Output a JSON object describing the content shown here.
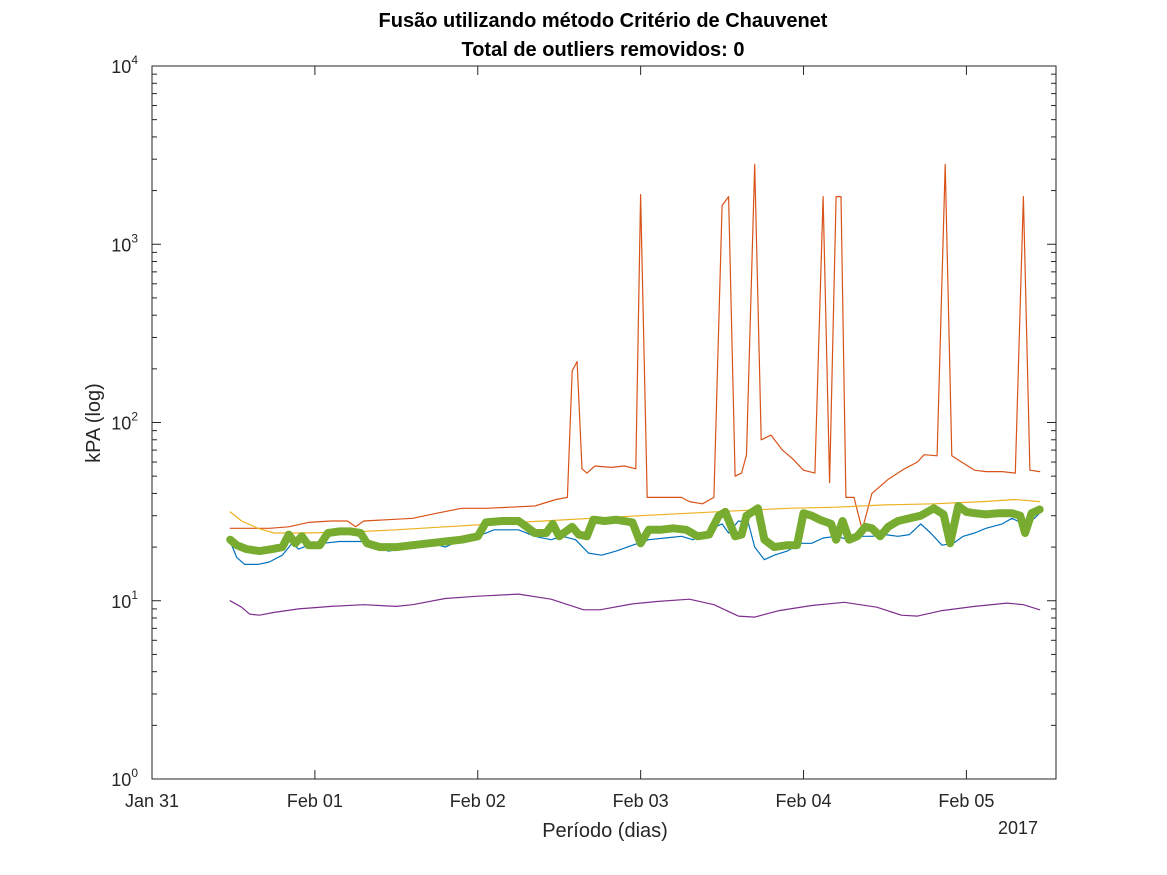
{
  "chart_data": {
    "type": "line",
    "title": [
      "Fusão utilizando método Critério de Chauvenet",
      "Total de outliers removidos: 0"
    ],
    "xlabel": "Período (dias)",
    "ylabel": "kPA (log)",
    "x_tick_labels": [
      "Jan 31",
      "Feb 01",
      "Feb 02",
      "Feb 03",
      "Feb 04",
      "Feb 05"
    ],
    "x_tick_days": [
      0,
      1,
      2,
      3,
      4,
      5
    ],
    "x_secondary_label": "2017",
    "xlim_days": [
      0,
      5.55
    ],
    "y_scale": "log",
    "ylim": [
      1,
      10000
    ],
    "y_ticks": [
      {
        "base": "10",
        "exp": "0"
      },
      {
        "base": "10",
        "exp": "1"
      },
      {
        "base": "10",
        "exp": "2"
      },
      {
        "base": "10",
        "exp": "3"
      },
      {
        "base": "10",
        "exp": "4"
      }
    ],
    "grid": false,
    "legend": "none",
    "series": [
      {
        "color": "#D95319",
        "width": 1.2,
        "points": [
          [
            0.48,
            25.5
          ],
          [
            0.6,
            25.5
          ],
          [
            0.72,
            25.5
          ],
          [
            0.84,
            26
          ],
          [
            0.96,
            27.5
          ],
          [
            1.1,
            28
          ],
          [
            1.2,
            28
          ],
          [
            1.25,
            26
          ],
          [
            1.3,
            28
          ],
          [
            1.45,
            28.5
          ],
          [
            1.6,
            29
          ],
          [
            1.75,
            31
          ],
          [
            1.9,
            33
          ],
          [
            2.05,
            33
          ],
          [
            2.2,
            33.5
          ],
          [
            2.35,
            34
          ],
          [
            2.48,
            37
          ],
          [
            2.55,
            38
          ],
          [
            2.58,
            195
          ],
          [
            2.61,
            220
          ],
          [
            2.64,
            55
          ],
          [
            2.67,
            52
          ],
          [
            2.72,
            57
          ],
          [
            2.82,
            56
          ],
          [
            2.9,
            57
          ],
          [
            2.97,
            55
          ],
          [
            3.0,
            1900
          ],
          [
            3.04,
            38
          ],
          [
            3.15,
            38
          ],
          [
            3.25,
            38
          ],
          [
            3.3,
            36
          ],
          [
            3.38,
            35
          ],
          [
            3.45,
            38
          ],
          [
            3.5,
            1650
          ],
          [
            3.54,
            1850
          ],
          [
            3.58,
            50
          ],
          [
            3.62,
            52
          ],
          [
            3.65,
            66
          ],
          [
            3.7,
            2800
          ],
          [
            3.74,
            80
          ],
          [
            3.8,
            85
          ],
          [
            3.87,
            70
          ],
          [
            3.93,
            63
          ],
          [
            4.0,
            54
          ],
          [
            4.07,
            52
          ],
          [
            4.12,
            1850
          ],
          [
            4.16,
            46
          ],
          [
            4.2,
            1850
          ],
          [
            4.23,
            1850
          ],
          [
            4.26,
            38
          ],
          [
            4.31,
            38
          ],
          [
            4.36,
            25
          ],
          [
            4.42,
            40
          ],
          [
            4.52,
            48
          ],
          [
            4.62,
            55
          ],
          [
            4.7,
            60
          ],
          [
            4.74,
            66
          ],
          [
            4.82,
            65
          ],
          [
            4.87,
            2800
          ],
          [
            4.91,
            65
          ],
          [
            4.97,
            60
          ],
          [
            5.05,
            54
          ],
          [
            5.12,
            53
          ],
          [
            5.22,
            53
          ],
          [
            5.3,
            52
          ],
          [
            5.35,
            1850
          ],
          [
            5.39,
            54
          ],
          [
            5.45,
            53
          ]
        ]
      },
      {
        "color": "#EDB120",
        "width": 1.2,
        "points": [
          [
            0.48,
            31.5
          ],
          [
            0.55,
            28
          ],
          [
            0.65,
            25.5
          ],
          [
            0.75,
            24
          ],
          [
            0.9,
            24
          ],
          [
            1.2,
            24.2
          ],
          [
            1.5,
            25
          ],
          [
            1.8,
            26
          ],
          [
            2.1,
            27
          ],
          [
            2.4,
            28
          ],
          [
            2.7,
            29
          ],
          [
            3.0,
            30
          ],
          [
            3.3,
            31
          ],
          [
            3.6,
            32
          ],
          [
            3.9,
            33
          ],
          [
            4.2,
            33.5
          ],
          [
            4.5,
            34.5
          ],
          [
            4.8,
            35
          ],
          [
            5.1,
            36
          ],
          [
            5.3,
            37
          ],
          [
            5.45,
            36
          ]
        ]
      },
      {
        "color": "#0072BD",
        "width": 1.2,
        "points": [
          [
            0.48,
            21.5
          ],
          [
            0.52,
            17.5
          ],
          [
            0.57,
            16
          ],
          [
            0.65,
            16
          ],
          [
            0.72,
            16.5
          ],
          [
            0.8,
            18
          ],
          [
            0.86,
            21
          ],
          [
            0.9,
            19.5
          ],
          [
            0.96,
            20.5
          ],
          [
            1.05,
            21
          ],
          [
            1.15,
            21.5
          ],
          [
            1.3,
            21.5
          ],
          [
            1.38,
            20.5
          ],
          [
            1.45,
            19
          ],
          [
            1.52,
            19.5
          ],
          [
            1.62,
            20.5
          ],
          [
            1.72,
            21
          ],
          [
            1.8,
            20
          ],
          [
            1.9,
            22
          ],
          [
            2.0,
            23
          ],
          [
            2.1,
            25
          ],
          [
            2.25,
            25
          ],
          [
            2.35,
            23
          ],
          [
            2.45,
            22
          ],
          [
            2.52,
            23
          ],
          [
            2.6,
            22
          ],
          [
            2.68,
            18.5
          ],
          [
            2.76,
            18
          ],
          [
            2.85,
            19
          ],
          [
            2.95,
            20.5
          ],
          [
            3.05,
            22
          ],
          [
            3.15,
            22.5
          ],
          [
            3.25,
            23
          ],
          [
            3.32,
            22
          ],
          [
            3.4,
            23.5
          ],
          [
            3.46,
            26
          ],
          [
            3.5,
            27
          ],
          [
            3.54,
            24
          ],
          [
            3.6,
            28
          ],
          [
            3.66,
            27.5
          ],
          [
            3.7,
            20
          ],
          [
            3.76,
            17
          ],
          [
            3.82,
            18
          ],
          [
            3.9,
            19
          ],
          [
            3.98,
            21
          ],
          [
            4.05,
            21
          ],
          [
            4.12,
            22.5
          ],
          [
            4.2,
            23
          ],
          [
            4.28,
            22
          ],
          [
            4.35,
            23
          ],
          [
            4.42,
            23
          ],
          [
            4.5,
            23.5
          ],
          [
            4.58,
            23
          ],
          [
            4.65,
            23.5
          ],
          [
            4.72,
            27
          ],
          [
            4.78,
            24
          ],
          [
            4.85,
            20.5
          ],
          [
            4.92,
            21
          ],
          [
            4.98,
            23
          ],
          [
            5.05,
            24
          ],
          [
            5.12,
            25.5
          ],
          [
            5.22,
            27
          ],
          [
            5.28,
            29
          ],
          [
            5.35,
            27
          ],
          [
            5.4,
            28
          ],
          [
            5.45,
            31
          ]
        ]
      },
      {
        "color": "#7E2F8E",
        "width": 1.2,
        "points": [
          [
            0.48,
            10
          ],
          [
            0.55,
            9.2
          ],
          [
            0.6,
            8.4
          ],
          [
            0.66,
            8.3
          ],
          [
            0.75,
            8.6
          ],
          [
            0.9,
            9.0
          ],
          [
            1.1,
            9.3
          ],
          [
            1.3,
            9.5
          ],
          [
            1.5,
            9.3
          ],
          [
            1.6,
            9.5
          ],
          [
            1.8,
            10.3
          ],
          [
            2.0,
            10.6
          ],
          [
            2.25,
            10.9
          ],
          [
            2.45,
            10.2
          ],
          [
            2.65,
            8.9
          ],
          [
            2.75,
            8.9
          ],
          [
            2.95,
            9.6
          ],
          [
            3.1,
            9.9
          ],
          [
            3.3,
            10.2
          ],
          [
            3.45,
            9.5
          ],
          [
            3.6,
            8.2
          ],
          [
            3.7,
            8.1
          ],
          [
            3.85,
            8.8
          ],
          [
            4.05,
            9.4
          ],
          [
            4.25,
            9.8
          ],
          [
            4.45,
            9.2
          ],
          [
            4.6,
            8.3
          ],
          [
            4.7,
            8.2
          ],
          [
            4.85,
            8.8
          ],
          [
            5.05,
            9.3
          ],
          [
            5.25,
            9.7
          ],
          [
            5.35,
            9.5
          ],
          [
            5.45,
            8.9
          ]
        ]
      },
      {
        "color": "#77AC30",
        "width": 8,
        "points": [
          [
            0.48,
            22
          ],
          [
            0.52,
            20.5
          ],
          [
            0.58,
            19.5
          ],
          [
            0.66,
            19
          ],
          [
            0.74,
            19.5
          ],
          [
            0.8,
            20
          ],
          [
            0.84,
            23.5
          ],
          [
            0.88,
            21
          ],
          [
            0.92,
            23
          ],
          [
            0.96,
            20.5
          ],
          [
            1.03,
            20.5
          ],
          [
            1.08,
            24
          ],
          [
            1.15,
            24.5
          ],
          [
            1.22,
            24.5
          ],
          [
            1.28,
            24
          ],
          [
            1.32,
            21
          ],
          [
            1.4,
            20
          ],
          [
            1.5,
            20
          ],
          [
            1.6,
            20.5
          ],
          [
            1.7,
            21
          ],
          [
            1.8,
            21.5
          ],
          [
            1.9,
            22
          ],
          [
            2.0,
            23
          ],
          [
            2.05,
            27.5
          ],
          [
            2.15,
            28
          ],
          [
            2.25,
            28
          ],
          [
            2.3,
            26
          ],
          [
            2.35,
            24
          ],
          [
            2.42,
            24
          ],
          [
            2.46,
            27
          ],
          [
            2.5,
            23
          ],
          [
            2.58,
            26
          ],
          [
            2.62,
            23.5
          ],
          [
            2.67,
            23
          ],
          [
            2.71,
            28.5
          ],
          [
            2.78,
            28
          ],
          [
            2.85,
            28.5
          ],
          [
            2.95,
            27.5
          ],
          [
            3.0,
            21
          ],
          [
            3.05,
            25
          ],
          [
            3.12,
            25
          ],
          [
            3.2,
            25.5
          ],
          [
            3.28,
            25
          ],
          [
            3.35,
            23
          ],
          [
            3.42,
            23.5
          ],
          [
            3.48,
            30
          ],
          [
            3.52,
            31.5
          ],
          [
            3.58,
            23
          ],
          [
            3.62,
            23.5
          ],
          [
            3.65,
            30
          ],
          [
            3.72,
            33
          ],
          [
            3.76,
            22
          ],
          [
            3.82,
            20
          ],
          [
            3.9,
            20.5
          ],
          [
            3.96,
            20.5
          ],
          [
            4.0,
            31
          ],
          [
            4.05,
            30
          ],
          [
            4.1,
            28.5
          ],
          [
            4.17,
            27
          ],
          [
            4.2,
            22
          ],
          [
            4.24,
            28
          ],
          [
            4.28,
            22
          ],
          [
            4.33,
            23
          ],
          [
            4.38,
            26
          ],
          [
            4.42,
            25.5
          ],
          [
            4.47,
            23
          ],
          [
            4.52,
            26
          ],
          [
            4.58,
            28
          ],
          [
            4.65,
            29
          ],
          [
            4.72,
            30
          ],
          [
            4.8,
            33
          ],
          [
            4.86,
            30.5
          ],
          [
            4.9,
            21
          ],
          [
            4.95,
            34
          ],
          [
            5.0,
            31.5
          ],
          [
            5.05,
            31
          ],
          [
            5.12,
            30.5
          ],
          [
            5.2,
            31
          ],
          [
            5.28,
            31
          ],
          [
            5.33,
            30
          ],
          [
            5.36,
            24
          ],
          [
            5.4,
            31
          ],
          [
            5.45,
            32.5
          ]
        ]
      }
    ]
  }
}
